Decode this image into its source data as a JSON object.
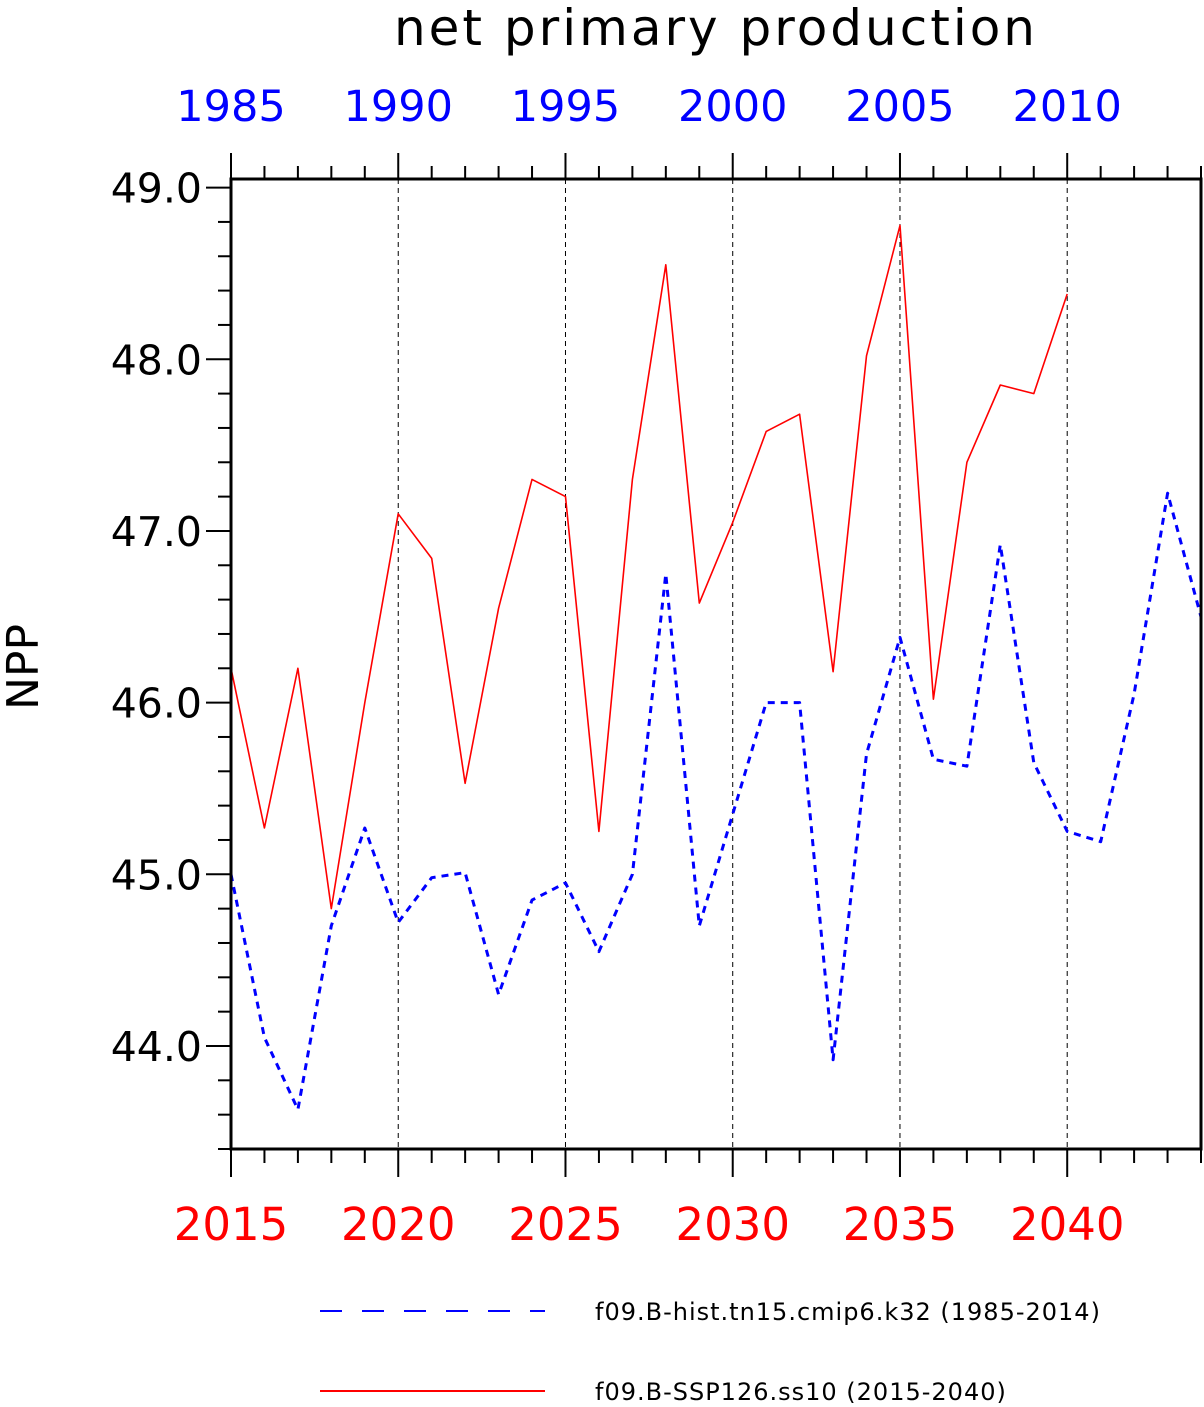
{
  "chart_data": {
    "type": "line",
    "title": "net primary production",
    "ylabel": "NPP",
    "ylim": [
      43.4,
      49.05
    ],
    "y_ticks": [
      "44.0",
      "45.0",
      "46.0",
      "47.0",
      "48.0",
      "49.0"
    ],
    "bottom_axis": {
      "range": [
        2015,
        2044
      ],
      "tick_labels": [
        "2015",
        "2020",
        "2025",
        "2030",
        "2035",
        "2040"
      ],
      "color": "#ff0000"
    },
    "top_axis": {
      "range": [
        1985,
        2014
      ],
      "tick_labels": [
        "1985",
        "1990",
        "1995",
        "2000",
        "2005",
        "2010"
      ],
      "color": "#0000ff"
    },
    "grid": "dashed vertical lines at major bottom-axis ticks",
    "legend_position": "bottom",
    "series": [
      {
        "name": "f09.B-hist.tn15.cmip6.k32 (1985-2014)",
        "axis": "top",
        "color": "#0000ff",
        "style": "dashed",
        "x": [
          1985,
          1986,
          1987,
          1988,
          1989,
          1990,
          1991,
          1992,
          1993,
          1994,
          1995,
          1996,
          1997,
          1998,
          1999,
          2000,
          2001,
          2002,
          2003,
          2004,
          2005,
          2006,
          2007,
          2008,
          2009,
          2010,
          2011,
          2012,
          2013,
          2014
        ],
        "values": [
          45.0,
          44.05,
          43.63,
          44.7,
          45.27,
          44.72,
          44.98,
          45.01,
          44.3,
          44.85,
          44.95,
          44.55,
          45.0,
          46.75,
          44.7,
          45.35,
          46.0,
          46.0,
          43.92,
          45.7,
          46.38,
          45.67,
          45.63,
          46.92,
          45.65,
          45.25,
          45.19,
          46.05,
          47.22,
          46.5
        ]
      },
      {
        "name": "f09.B-SSP126.ss10 (2015-2040)",
        "axis": "bottom",
        "color": "#ff0000",
        "style": "solid",
        "x": [
          2015,
          2016,
          2017,
          2018,
          2019,
          2020,
          2021,
          2022,
          2023,
          2024,
          2025,
          2026,
          2027,
          2028,
          2029,
          2030,
          2031,
          2032,
          2033,
          2034,
          2035,
          2036,
          2037,
          2038,
          2039,
          2040
        ],
        "values": [
          46.2,
          45.27,
          46.2,
          44.8,
          46.0,
          47.1,
          46.84,
          45.53,
          46.55,
          47.3,
          47.2,
          45.25,
          47.3,
          48.55,
          46.58,
          47.05,
          47.58,
          47.68,
          46.18,
          48.02,
          48.78,
          46.02,
          47.4,
          47.85,
          47.8,
          48.38
        ]
      }
    ]
  }
}
